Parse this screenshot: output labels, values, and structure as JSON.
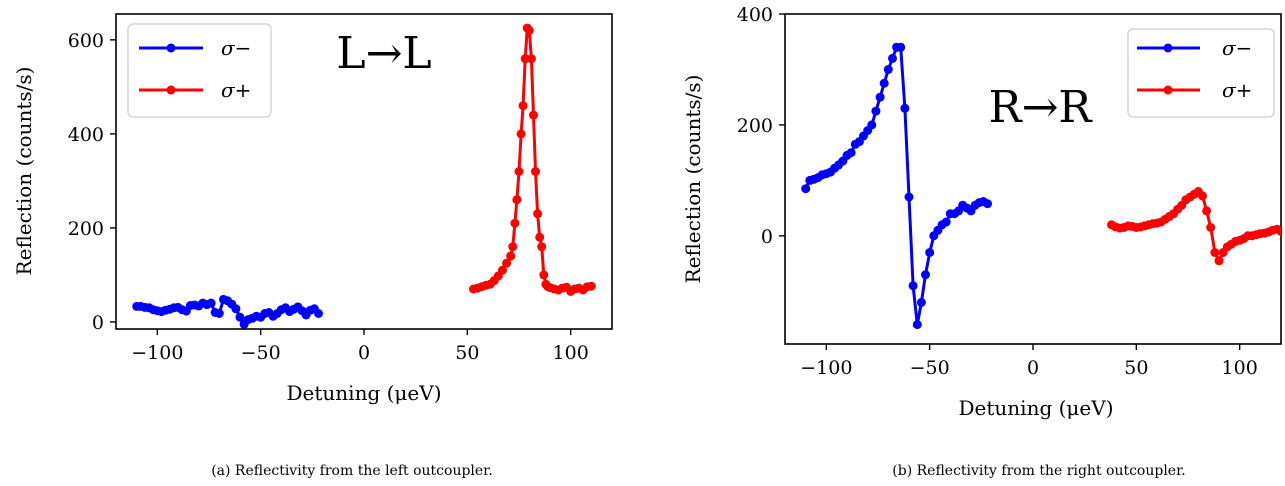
{
  "chart_data": [
    {
      "type": "line",
      "caption": "(a) Reflectivity from the left outcoupler.",
      "annotation": "L→L",
      "xlabel": "Detuning (μeV)",
      "ylabel": "Reflection (counts/s)",
      "xlim": [
        -120,
        120
      ],
      "ylim": [
        -15,
        655
      ],
      "xticks": [
        -100,
        -50,
        0,
        50,
        100
      ],
      "xtick_labels": [
        "−100",
        "−50",
        "0",
        "50",
        "100"
      ],
      "yticks": [
        0,
        200,
        400,
        600
      ],
      "ytick_labels": [
        "0",
        "200",
        "400",
        "600"
      ],
      "legend": "top-left",
      "series": [
        {
          "name": "σ−",
          "color": "#0000ff",
          "x": [
            -110,
            -108,
            -106,
            -104,
            -102,
            -100,
            -98,
            -96,
            -94,
            -92,
            -90,
            -88,
            -86,
            -84,
            -82,
            -80,
            -78,
            -76,
            -74,
            -72,
            -70,
            -68,
            -66,
            -64,
            -62,
            -60,
            -58,
            -56,
            -54,
            -52,
            -50,
            -48,
            -46,
            -44,
            -42,
            -40,
            -38,
            -36,
            -34,
            -32,
            -30,
            -28,
            -26,
            -24,
            -22
          ],
          "y": [
            33,
            33,
            31,
            30,
            26,
            24,
            22,
            25,
            27,
            30,
            31,
            26,
            23,
            35,
            36,
            34,
            40,
            37,
            40,
            20,
            18,
            48,
            45,
            38,
            28,
            10,
            -5,
            5,
            8,
            12,
            10,
            18,
            20,
            12,
            18,
            26,
            30,
            22,
            27,
            32,
            24,
            15,
            25,
            28,
            18
          ]
        },
        {
          "name": "σ+",
          "color": "#ff0000",
          "x": [
            53,
            55,
            57,
            59,
            61,
            63,
            65,
            67,
            69,
            71,
            72,
            73,
            74,
            75,
            76,
            77,
            78,
            79,
            80,
            81,
            82,
            83,
            84,
            85,
            86,
            87,
            88,
            89,
            90,
            92,
            94,
            96,
            98,
            100,
            102,
            104,
            106,
            108,
            110
          ],
          "y": [
            70,
            72,
            75,
            78,
            80,
            88,
            98,
            110,
            125,
            140,
            160,
            210,
            260,
            320,
            400,
            460,
            560,
            625,
            620,
            560,
            440,
            320,
            230,
            180,
            160,
            100,
            80,
            75,
            73,
            70,
            68,
            72,
            74,
            65,
            70,
            72,
            68,
            75,
            76
          ]
        }
      ]
    },
    {
      "type": "line",
      "caption": "(b) Reflectivity from the right outcoupler.",
      "annotation": "R→R",
      "xlabel": "Detuning (μeV)",
      "ylabel": "Reflection (counts/s)",
      "xlim": [
        -120,
        120
      ],
      "ylim": [
        -195,
        400
      ],
      "xticks": [
        -100,
        -50,
        0,
        50,
        100
      ],
      "xtick_labels": [
        "−100",
        "−50",
        "0",
        "50",
        "100"
      ],
      "yticks": [
        0,
        200,
        400
      ],
      "ytick_labels": [
        "0",
        "200",
        "400"
      ],
      "legend": "top-right",
      "series": [
        {
          "name": "σ−",
          "color": "#0000ff",
          "x": [
            -110,
            -108,
            -106,
            -104,
            -102,
            -100,
            -98,
            -96,
            -94,
            -92,
            -90,
            -88,
            -86,
            -84,
            -82,
            -80,
            -78,
            -76,
            -74,
            -72,
            -70,
            -68,
            -66,
            -64,
            -62,
            -60,
            -58,
            -56,
            -54,
            -52,
            -50,
            -48,
            -46,
            -44,
            -42,
            -40,
            -38,
            -36,
            -34,
            -32,
            -30,
            -28,
            -26,
            -24,
            -22
          ],
          "y": [
            85,
            100,
            102,
            105,
            110,
            112,
            115,
            122,
            128,
            135,
            145,
            150,
            165,
            170,
            180,
            190,
            200,
            225,
            250,
            275,
            300,
            320,
            340,
            340,
            230,
            70,
            -90,
            -160,
            -120,
            -70,
            -30,
            0,
            10,
            20,
            25,
            40,
            40,
            45,
            55,
            50,
            45,
            55,
            60,
            62,
            58
          ]
        },
        {
          "name": "σ+",
          "color": "#ff0000",
          "x": [
            38,
            40,
            42,
            44,
            46,
            48,
            50,
            52,
            54,
            56,
            58,
            60,
            62,
            64,
            66,
            68,
            70,
            72,
            74,
            76,
            78,
            80,
            82,
            84,
            86,
            88,
            90,
            92,
            94,
            96,
            98,
            100,
            102,
            104,
            106,
            108,
            110,
            112,
            114,
            116,
            118,
            120
          ],
          "y": [
            20,
            16,
            14,
            15,
            18,
            17,
            15,
            16,
            18,
            20,
            22,
            23,
            25,
            30,
            35,
            40,
            48,
            55,
            65,
            70,
            75,
            80,
            72,
            45,
            15,
            -30,
            -45,
            -30,
            -20,
            -15,
            -10,
            -8,
            -5,
            0,
            0,
            2,
            4,
            5,
            7,
            10,
            12,
            8
          ]
        }
      ]
    }
  ]
}
